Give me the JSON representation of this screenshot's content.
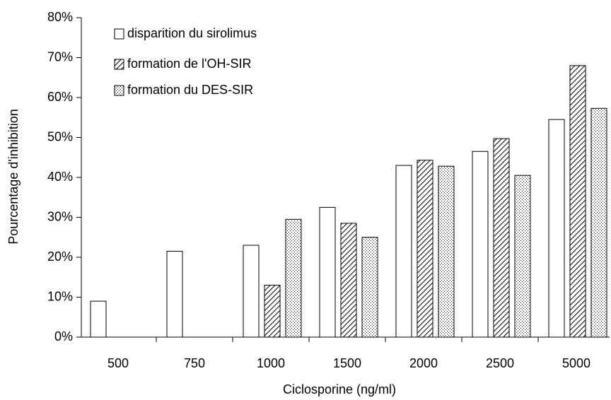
{
  "chart_data": {
    "type": "bar",
    "xlabel": "Ciclosporine (ng/ml)",
    "ylabel": "Pourcentage d'inhibition",
    "categories": [
      "500",
      "750",
      "1000",
      "1500",
      "2000",
      "2500",
      "5000"
    ],
    "series": [
      {
        "name": "disparition du sirolimus",
        "color": "#ffffff",
        "pattern": "solid",
        "values": [
          9,
          21.5,
          23,
          32.5,
          43,
          46.5,
          54.5
        ]
      },
      {
        "name": "formation de l'OH-SIR",
        "color": "#ffffff",
        "pattern": "hatch",
        "values": [
          null,
          null,
          13,
          28.5,
          44.3,
          49.7,
          68
        ]
      },
      {
        "name": "formation du DES-SIR",
        "color": "#ffffff",
        "pattern": "dots",
        "values": [
          null,
          null,
          29.5,
          25,
          42.8,
          40.5,
          57.3
        ]
      }
    ],
    "ylim": [
      0,
      80
    ],
    "yticks": [
      {
        "value": 0,
        "label": "0%"
      },
      {
        "value": 10,
        "label": "10%"
      },
      {
        "value": 20,
        "label": "20%"
      },
      {
        "value": 30,
        "label": "30%"
      },
      {
        "value": 40,
        "label": "40%"
      },
      {
        "value": 50,
        "label": "50%"
      },
      {
        "value": 60,
        "label": "60%"
      },
      {
        "value": 70,
        "label": "70%"
      },
      {
        "value": 80,
        "label": "80%"
      }
    ],
    "grid": false,
    "legend": "upper left"
  }
}
